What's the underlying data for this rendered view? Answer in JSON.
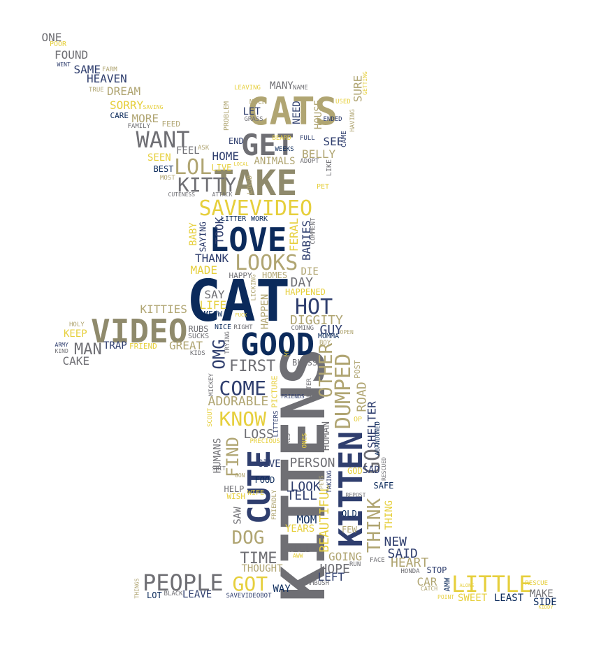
{
  "palette": {
    "navy": "#0b2a5b",
    "slate": "#2f3e6e",
    "gray": "#6f6f74",
    "olive": "#8f8a6c",
    "khaki": "#b0a572",
    "gold": "#e6cf3c"
  },
  "words": [
    {
      "text": "CAT",
      "color": "navy"
    },
    {
      "text": "KITTENS",
      "color": "gray"
    },
    {
      "text": "CATS",
      "color": "khaki"
    },
    {
      "text": "TAKE",
      "color": "olive"
    },
    {
      "text": "VIDEO",
      "color": "olive"
    },
    {
      "text": "GOOD",
      "color": "navy"
    },
    {
      "text": "LOVE",
      "color": "navy"
    },
    {
      "text": "KITTEN",
      "color": "slate"
    },
    {
      "text": "SAVEVIDEO",
      "color": "gold"
    },
    {
      "text": "GET",
      "color": "gray"
    },
    {
      "text": "CUTE",
      "color": "slate"
    },
    {
      "text": "PEOPLE",
      "color": "gray"
    },
    {
      "text": "LITTLE",
      "color": "gold"
    },
    {
      "text": "WANT",
      "color": "gray"
    },
    {
      "text": "HOT",
      "color": "slate"
    },
    {
      "text": "LOOKS",
      "color": "khaki"
    },
    {
      "text": "DUMPED",
      "color": "khaki"
    },
    {
      "text": "GO",
      "color": "gray"
    },
    {
      "text": "COME",
      "color": "slate"
    },
    {
      "text": "KNOW",
      "color": "gold"
    },
    {
      "text": "OTHER",
      "color": "khaki"
    },
    {
      "text": "THINK",
      "color": "khaki"
    },
    {
      "text": "GOT",
      "color": "gold"
    },
    {
      "text": "LOL",
      "color": "khaki"
    },
    {
      "text": "KITTY",
      "color": "gray"
    },
    {
      "text": "DOG",
      "color": "khaki"
    },
    {
      "text": "FIND",
      "color": "khaki"
    },
    {
      "text": "MAN",
      "color": "gray"
    },
    {
      "text": "OMG",
      "color": "slate"
    },
    {
      "text": "FIRST",
      "color": "gray"
    },
    {
      "text": "TIME",
      "color": "gray"
    },
    {
      "text": "BEAUTIFUL",
      "color": "gold"
    },
    {
      "text": "NEW",
      "color": "slate"
    },
    {
      "text": "HOPE",
      "color": "gray"
    },
    {
      "text": "HEART",
      "color": "khaki"
    },
    {
      "text": "SAID",
      "color": "slate"
    },
    {
      "text": "GOING",
      "color": "khaki"
    },
    {
      "text": "LEFT",
      "color": "slate"
    },
    {
      "text": "WILD",
      "color": "gray"
    },
    {
      "text": "YEARS",
      "color": "gold"
    },
    {
      "text": "MOM",
      "color": "navy"
    },
    {
      "text": "TELL",
      "color": "slate"
    },
    {
      "text": "LOOK",
      "color": "slate"
    },
    {
      "text": "PERSON",
      "color": "gray"
    },
    {
      "text": "GIVE",
      "color": "slate"
    },
    {
      "text": "LOSS",
      "color": "gray"
    },
    {
      "text": "ADORABLE",
      "color": "khaki"
    },
    {
      "text": "HUMANS",
      "color": "gray"
    },
    {
      "text": "SHELTER",
      "color": "slate"
    },
    {
      "text": "ROAD",
      "color": "khaki"
    },
    {
      "text": "HUMAN",
      "color": "gray"
    },
    {
      "text": "DIGGITY",
      "color": "khaki"
    },
    {
      "text": "GUY",
      "color": "slate"
    },
    {
      "text": "DAY",
      "color": "gray"
    },
    {
      "text": "DIE",
      "color": "khaki"
    },
    {
      "text": "HAPPEN",
      "color": "khaki"
    },
    {
      "text": "SAY",
      "color": "gray"
    },
    {
      "text": "LIFE",
      "color": "gold"
    },
    {
      "text": "KITTIES",
      "color": "khaki"
    },
    {
      "text": "KEEP",
      "color": "gold"
    },
    {
      "text": "CAKE",
      "color": "gray"
    },
    {
      "text": "TRAP",
      "color": "slate"
    },
    {
      "text": "GREAT",
      "color": "khaki"
    },
    {
      "text": "THANK",
      "color": "slate"
    },
    {
      "text": "MADE",
      "color": "gold"
    },
    {
      "text": "TOOK",
      "color": "slate"
    },
    {
      "text": "BABY",
      "color": "gold"
    },
    {
      "text": "BABIES",
      "color": "slate"
    },
    {
      "text": "FERAL",
      "color": "gold"
    },
    {
      "text": "HOME",
      "color": "slate"
    },
    {
      "text": "FEEL",
      "color": "gray"
    },
    {
      "text": "SEEN",
      "color": "gold"
    },
    {
      "text": "BEST",
      "color": "navy"
    },
    {
      "text": "MORE",
      "color": "khaki"
    },
    {
      "text": "SORRY",
      "color": "gold"
    },
    {
      "text": "DREAM",
      "color": "khaki"
    },
    {
      "text": "HEAVEN",
      "color": "slate"
    },
    {
      "text": "SAME",
      "color": "slate"
    },
    {
      "text": "FOUND",
      "color": "gray"
    },
    {
      "text": "ONE",
      "color": "gray"
    },
    {
      "text": "MANY",
      "color": "gray"
    },
    {
      "text": "NEED",
      "color": "slate"
    },
    {
      "text": "HOUSE",
      "color": "khaki"
    },
    {
      "text": "SURE",
      "color": "khaki"
    },
    {
      "text": "SEE",
      "color": "slate"
    },
    {
      "text": "BELLY",
      "color": "khaki"
    },
    {
      "text": "ANIMALS",
      "color": "khaki"
    },
    {
      "text": "LET",
      "color": "slate"
    },
    {
      "text": "END",
      "color": "slate"
    },
    {
      "text": "LIVE",
      "color": "gold"
    },
    {
      "text": "SAD",
      "color": "slate"
    },
    {
      "text": "SAFE",
      "color": "navy"
    },
    {
      "text": "GOD",
      "color": "gold"
    },
    {
      "text": "THING",
      "color": "gold"
    },
    {
      "text": "OLD",
      "color": "navy"
    },
    {
      "text": "FEW",
      "color": "khaki"
    },
    {
      "text": "CAR",
      "color": "khaki"
    },
    {
      "text": "SWEET",
      "color": "gold"
    },
    {
      "text": "LEAST",
      "color": "navy"
    },
    {
      "text": "MAKE",
      "color": "gray"
    },
    {
      "text": "SIDE",
      "color": "navy"
    },
    {
      "text": "STOP",
      "color": "slate"
    },
    {
      "text": "THOUGHT",
      "color": "khaki"
    },
    {
      "text": "WAY",
      "color": "navy"
    },
    {
      "text": "LEAVE",
      "color": "slate"
    },
    {
      "text": "LOT",
      "color": "navy"
    },
    {
      "text": "SAW",
      "color": "gray"
    },
    {
      "text": "HELP",
      "color": "gray"
    },
    {
      "text": "FOOD",
      "color": "navy"
    },
    {
      "text": "WISH",
      "color": "gold"
    },
    {
      "text": "WIFE",
      "color": "gold"
    },
    {
      "text": "BLESS",
      "color": "gray"
    },
    {
      "text": "POST",
      "color": "khaki"
    },
    {
      "text": "HAPPENED",
      "color": "gold"
    },
    {
      "text": "HOMES",
      "color": "khaki"
    },
    {
      "text": "HAPPY",
      "color": "gray"
    },
    {
      "text": "MEOW",
      "color": "navy"
    },
    {
      "text": "RUBS",
      "color": "gray"
    },
    {
      "text": "SUCKS",
      "color": "gray"
    },
    {
      "text": "NICE",
      "color": "navy"
    },
    {
      "text": "FRIEND",
      "color": "gold"
    },
    {
      "text": "HOLY",
      "color": "khaki"
    },
    {
      "text": "ARMY",
      "color": "slate"
    },
    {
      "text": "KIND",
      "color": "gray"
    },
    {
      "text": "LITTER",
      "color": "navy"
    },
    {
      "text": "WORK",
      "color": "navy"
    },
    {
      "text": "SAYING",
      "color": "slate"
    },
    {
      "text": "COMMENT",
      "color": "gray"
    },
    {
      "text": "LICKING",
      "color": "khaki"
    },
    {
      "text": "CUTENESS",
      "color": "gray"
    },
    {
      "text": "ATTACK",
      "color": "gray"
    },
    {
      "text": "LOVED",
      "color": "khaki"
    },
    {
      "text": "PET",
      "color": "gold"
    },
    {
      "text": "MOST",
      "color": "khaki"
    },
    {
      "text": "ASK",
      "color": "khaki"
    },
    {
      "text": "FEED",
      "color": "khaki"
    },
    {
      "text": "FAMILY",
      "color": "gray"
    },
    {
      "text": "CARE",
      "color": "navy"
    },
    {
      "text": "SAVING",
      "color": "gold"
    },
    {
      "text": "TRUE",
      "color": "khaki"
    },
    {
      "text": "FARM",
      "color": "khaki"
    },
    {
      "text": "WENT",
      "color": "slate"
    },
    {
      "text": "POOR",
      "color": "gold"
    },
    {
      "text": "LEAVING",
      "color": "gold"
    },
    {
      "text": "NAME",
      "color": "gray"
    },
    {
      "text": "MUCH",
      "color": "khaki"
    },
    {
      "text": "GRASS",
      "color": "gray"
    },
    {
      "text": "PROBLEM",
      "color": "khaki"
    },
    {
      "text": "USED",
      "color": "gold"
    },
    {
      "text": "ENDED",
      "color": "slate"
    },
    {
      "text": "GETTING",
      "color": "gold"
    },
    {
      "text": "HAVING",
      "color": "khaki"
    },
    {
      "text": "CAME",
      "color": "slate"
    },
    {
      "text": "BEARD",
      "color": "gold"
    },
    {
      "text": "WEEKS",
      "color": "navy"
    },
    {
      "text": "FULL",
      "color": "slate"
    },
    {
      "text": "ADOPT",
      "color": "gray"
    },
    {
      "text": "LIKE",
      "color": "gray"
    },
    {
      "text": "LOCAL",
      "color": "gold"
    },
    {
      "text": "RIGHT",
      "color": "gray"
    },
    {
      "text": "TRYING",
      "color": "gray"
    },
    {
      "text": "FUCK",
      "color": "gold"
    },
    {
      "text": "COMING",
      "color": "gray"
    },
    {
      "text": "MOMMA",
      "color": "navy"
    },
    {
      "text": "BOY",
      "color": "khaki"
    },
    {
      "text": "OPEN",
      "color": "khaki"
    },
    {
      "text": "KIDS",
      "color": "gray"
    },
    {
      "text": "MY",
      "color": "gold"
    },
    {
      "text": "MICKEY",
      "color": "gray"
    },
    {
      "text": "SCOUT",
      "color": "gold"
    },
    {
      "text": "FRIENDS",
      "color": "slate"
    },
    {
      "text": "BETTER",
      "color": "gray"
    },
    {
      "text": "PICTURE",
      "color": "gold"
    },
    {
      "text": "LITTERS",
      "color": "slate"
    },
    {
      "text": "MAKES",
      "color": "gray"
    },
    {
      "text": "ONES",
      "color": "gold"
    },
    {
      "text": "PRECIOUS",
      "color": "gold"
    },
    {
      "text": "OP",
      "color": "gold"
    },
    {
      "text": "ABANDONED",
      "color": "navy"
    },
    {
      "text": "RESCUED",
      "color": "gray"
    },
    {
      "text": "SHIT",
      "color": "gray"
    },
    {
      "text": "GON",
      "color": "khaki"
    },
    {
      "text": "FRIENDLY",
      "color": "khaki"
    },
    {
      "text": "TAKING",
      "color": "slate"
    },
    {
      "text": "PETS",
      "color": "khaki"
    },
    {
      "text": "REPOST",
      "color": "gray"
    },
    {
      "text": "RUN",
      "color": "gray"
    },
    {
      "text": "FACE",
      "color": "gray"
    },
    {
      "text": "AWW",
      "color": "gold"
    },
    {
      "text": "AMBUSH",
      "color": "gray"
    },
    {
      "text": "AMW",
      "color": "navy"
    },
    {
      "text": "CATCH",
      "color": "khaki"
    },
    {
      "text": "HONDA",
      "color": "gray"
    },
    {
      "text": "POINT",
      "color": "gold"
    },
    {
      "text": "RESCUE",
      "color": "gold"
    },
    {
      "text": "ALONE",
      "color": "gold"
    },
    {
      "text": "KIDDY",
      "color": "gold"
    },
    {
      "text": "THINGS",
      "color": "khaki"
    },
    {
      "text": "BLACK",
      "color": "gray"
    },
    {
      "text": "SAVEVIDEOBOT",
      "color": "slate"
    }
  ]
}
